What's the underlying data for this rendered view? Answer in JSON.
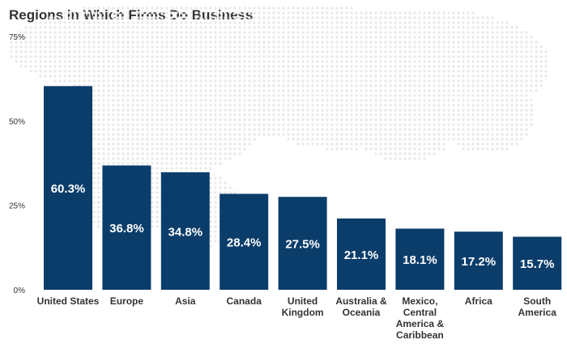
{
  "chart_data": {
    "type": "bar",
    "title": "Regions in Which Firms Do Business",
    "xlabel": "",
    "ylabel": "",
    "ylim": [
      0,
      75
    ],
    "yticks": [
      0,
      25,
      50,
      75
    ],
    "ytick_labels": [
      "0%",
      "25%",
      "50%",
      "75%"
    ],
    "value_suffix": "%",
    "categories": [
      [
        "United States"
      ],
      [
        "Europe"
      ],
      [
        "Asia"
      ],
      [
        "Canada"
      ],
      [
        "United",
        "Kingdom"
      ],
      [
        "Australia &",
        "Oceania"
      ],
      [
        "Mexico,",
        "Central",
        "America &",
        "Caribbean"
      ],
      [
        "Africa"
      ],
      [
        "South",
        "America"
      ]
    ],
    "values": [
      60.3,
      36.8,
      34.8,
      28.4,
      27.5,
      21.1,
      18.1,
      17.2,
      15.7
    ],
    "grid": false,
    "legend": "none",
    "colors": {
      "bar": "#0b3d6b",
      "bar_label": "#ffffff",
      "axis_text": "#333333",
      "map_dots": "#e9e9e9"
    },
    "background": "world-map-dots"
  }
}
